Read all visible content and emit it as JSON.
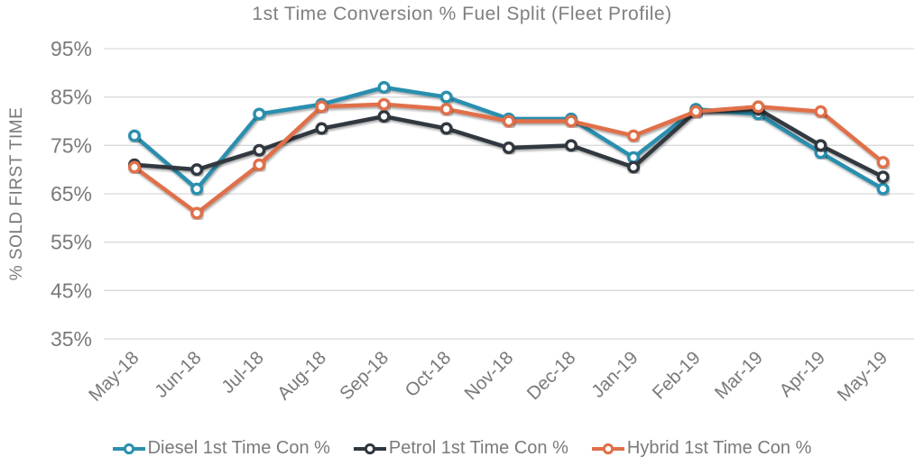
{
  "chart_data": {
    "type": "line",
    "title": "1st Time Conversion % Fuel Split (Fleet Profile)",
    "xlabel": "",
    "ylabel": "% SOLD FIRST TIME",
    "ylim": [
      35,
      95
    ],
    "yticks": [
      95,
      85,
      75,
      65,
      55,
      45,
      35
    ],
    "ytick_labels": [
      "95%",
      "85%",
      "75%",
      "65%",
      "55%",
      "45%",
      "35%"
    ],
    "grid": true,
    "legend_position": "bottom",
    "categories": [
      "May-18",
      "Jun-18",
      "Jul-18",
      "Aug-18",
      "Sep-18",
      "Oct-18",
      "Nov-18",
      "Dec-18",
      "Jan-19",
      "Feb-19",
      "Mar-19",
      "Apr-19",
      "May-19"
    ],
    "series": [
      {
        "name": "Diesel 1st Time Con %",
        "color": "#2b8fae",
        "values": [
          77,
          66,
          81.5,
          83.5,
          87,
          85,
          80.5,
          80.5,
          72.5,
          82.5,
          81.5,
          73.5,
          66
        ]
      },
      {
        "name": "Petrol 1st Time Con %",
        "color": "#30383f",
        "values": [
          71,
          70,
          74,
          78.5,
          81,
          78.5,
          74.5,
          75,
          70.5,
          82,
          82.5,
          75,
          68.5
        ]
      },
      {
        "name": "Hybrid 1st Time Con %",
        "color": "#e06f4a",
        "values": [
          70.5,
          61,
          71,
          83,
          83.5,
          82.5,
          80,
          80,
          77,
          82,
          83,
          82,
          71.5
        ]
      }
    ],
    "colors": {
      "grid": "#d9d9d9",
      "text": "#7a7a7a",
      "marker_fill": "#ffffff"
    }
  }
}
